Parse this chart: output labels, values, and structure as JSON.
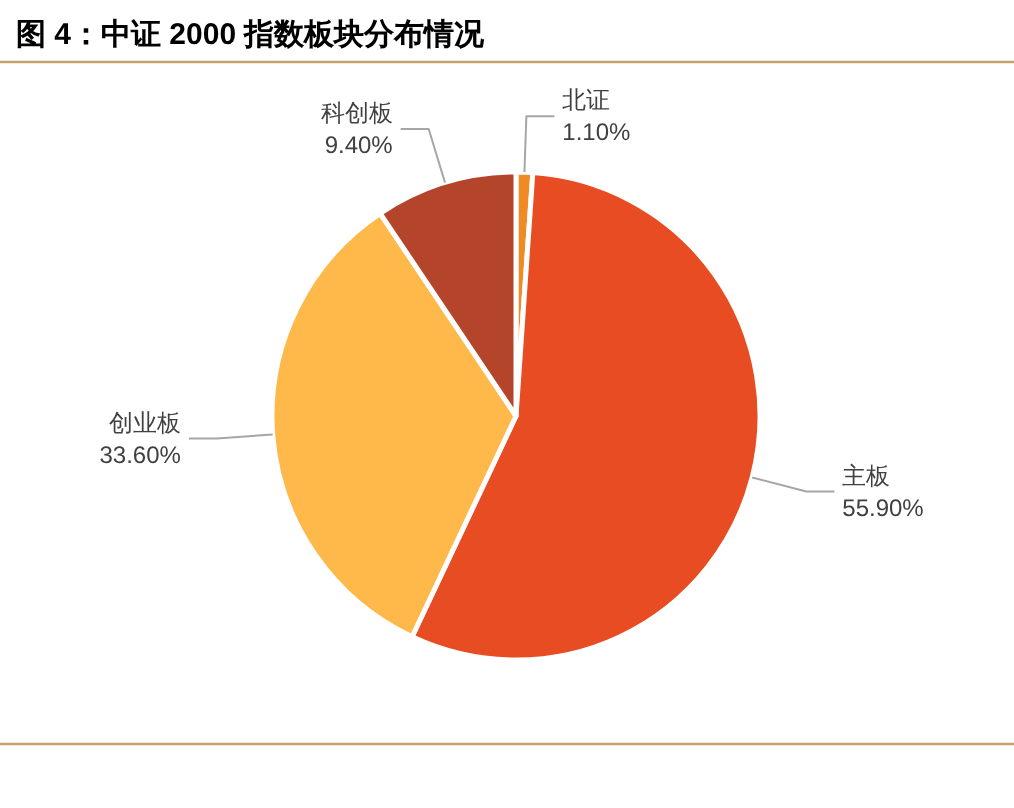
{
  "chart_data": {
    "type": "pie",
    "title": "图 4：中证 2000 指数板块分布情况",
    "categories": [
      "北证",
      "主板",
      "创业板",
      "科创板"
    ],
    "values": [
      1.1,
      55.9,
      33.6,
      9.4
    ],
    "colors": [
      "#f08a24",
      "#e84c22",
      "#ffb84a",
      "#b5452a"
    ],
    "value_labels": [
      "1.10%",
      "55.90%",
      "33.60%",
      "9.40%"
    ]
  }
}
